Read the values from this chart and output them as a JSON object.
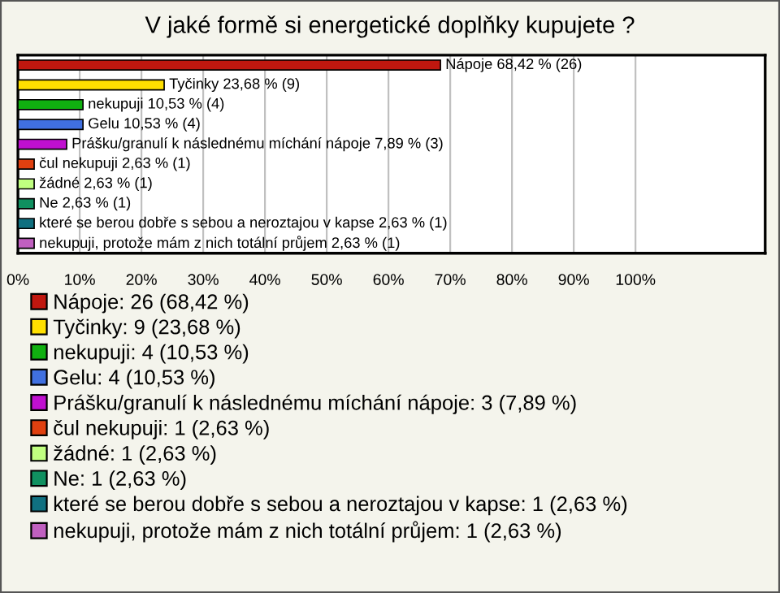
{
  "chart_data": {
    "type": "bar",
    "orientation": "horizontal",
    "title": "V jaké formě si energetické doplňky kupujete ?",
    "categories": [
      null,
      null,
      null,
      null,
      null,
      null,
      null,
      null,
      null,
      null
    ],
    "series": [
      {
        "name": "Nápoje: 26 (68,42 %)",
        "color": "#c0170f",
        "values": [
          68.42,
          null,
          null,
          null,
          null,
          null,
          null,
          null,
          null,
          null
        ],
        "value_labels": [
          "Nápoje 68,42 % (26)",
          null,
          null,
          null,
          null,
          null,
          null,
          null,
          null,
          null
        ]
      },
      {
        "name": "Tyčinky: 9 (23,68 %)",
        "color": "#ffe000",
        "values": [
          null,
          23.68,
          null,
          null,
          null,
          null,
          null,
          null,
          null,
          null
        ],
        "value_labels": [
          null,
          "Tyčinky 23,68 % (9)",
          null,
          null,
          null,
          null,
          null,
          null,
          null,
          null
        ]
      },
      {
        "name": "nekupuji: 4 (10,53 %)",
        "color": "#10b010",
        "values": [
          null,
          null,
          10.53,
          null,
          null,
          null,
          null,
          null,
          null,
          null
        ],
        "value_labels": [
          null,
          null,
          "nekupuji 10,53 % (4)",
          null,
          null,
          null,
          null,
          null,
          null,
          null
        ]
      },
      {
        "name": "Gelu: 4 (10,53 %)",
        "color": "#4070e0",
        "values": [
          null,
          null,
          null,
          10.53,
          null,
          null,
          null,
          null,
          null,
          null
        ],
        "value_labels": [
          null,
          null,
          null,
          "Gelu 10,53 % (4)",
          null,
          null,
          null,
          null,
          null,
          null
        ]
      },
      {
        "name": "Prášku/granulí k následnému míchání nápoje: 3 (7,89 %)",
        "color": "#c010d0",
        "values": [
          null,
          null,
          null,
          null,
          7.89,
          null,
          null,
          null,
          null,
          null
        ],
        "value_labels": [
          null,
          null,
          null,
          null,
          "Prášku/granulí k následnému míchání nápoje 7,89 % (3)",
          null,
          null,
          null,
          null,
          null
        ]
      },
      {
        "name": "čul nekupuji: 1 (2,63 %)",
        "color": "#e04010",
        "values": [
          null,
          null,
          null,
          null,
          null,
          2.63,
          null,
          null,
          null,
          null
        ],
        "value_labels": [
          null,
          null,
          null,
          null,
          null,
          "čul nekupuji 2,63 % (1)",
          null,
          null,
          null,
          null
        ]
      },
      {
        "name": "žádné: 1 (2,63 %)",
        "color": "#c0ff80",
        "values": [
          null,
          null,
          null,
          null,
          null,
          null,
          2.63,
          null,
          null,
          null
        ],
        "value_labels": [
          null,
          null,
          null,
          null,
          null,
          null,
          "žádné 2,63 % (1)",
          null,
          null,
          null
        ]
      },
      {
        "name": "Ne: 1 (2,63 %)",
        "color": "#109060",
        "values": [
          null,
          null,
          null,
          null,
          null,
          null,
          null,
          2.63,
          null,
          null
        ],
        "value_labels": [
          null,
          null,
          null,
          null,
          null,
          null,
          null,
          "Ne 2,63 % (1)",
          null,
          null
        ]
      },
      {
        "name": "které se berou dobře s sebou a neroztajou v kapse: 1 (2,63 %)",
        "color": "#107080",
        "values": [
          null,
          null,
          null,
          null,
          null,
          null,
          null,
          null,
          2.63,
          null
        ],
        "value_labels": [
          null,
          null,
          null,
          null,
          null,
          null,
          null,
          null,
          "které se berou dobře s sebou a neroztajou v kapse 2,63 % (1)",
          null
        ]
      },
      {
        "name": "nekupuji, protože mám z nich totální průjem: 1 (2,63 %)",
        "color": "#c060c0",
        "values": [
          null,
          null,
          null,
          null,
          null,
          null,
          null,
          null,
          null,
          2.63
        ],
        "value_labels": [
          null,
          null,
          null,
          null,
          null,
          null,
          null,
          null,
          null,
          "nekupuji, protože mám z nich totální průjem 2,63 % (1)"
        ]
      }
    ],
    "xlim": [
      0,
      121
    ],
    "xticks": [
      {
        "value": 0,
        "label": "0%"
      },
      {
        "value": 10,
        "label": "10%"
      },
      {
        "value": 20,
        "label": "20%"
      },
      {
        "value": 30,
        "label": "30%"
      },
      {
        "value": 40,
        "label": "40%"
      },
      {
        "value": 50,
        "label": "50%"
      },
      {
        "value": 60,
        "label": "60%"
      },
      {
        "value": 70,
        "label": "70%"
      },
      {
        "value": 80,
        "label": "80%"
      },
      {
        "value": 90,
        "label": "90%"
      },
      {
        "value": 100,
        "label": "100%"
      }
    ],
    "grid": "x",
    "legend": "bottom"
  }
}
